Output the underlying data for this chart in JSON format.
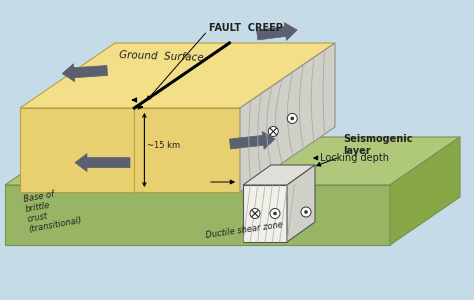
{
  "bg_color": "#c5dce8",
  "upper_block_top_color": "#f2df88",
  "upper_block_front_color": "#e8d070",
  "upper_block_edge": "#b8a040",
  "lower_block_top_color": "#b0c87a",
  "lower_block_front_color": "#98b565",
  "lower_block_edge": "#789050",
  "fault_face_color": "#d8d8d0",
  "seismo_line_color": "#b0b0a8",
  "ductile_box_front": "#f0f0e8",
  "ductile_box_top": "#e0e0d8",
  "ductile_box_right": "#d0d0c8",
  "labels": {
    "ground_surface": "Ground  Surface",
    "fault_creep": "FAULT  CREEP",
    "seismogenic": "Seismogenic\nlayer",
    "locking_depth": "Locking depth",
    "depth_15km": "~15 km",
    "base_crust": "Base of\nbrittle\ncrust\n(transitional)",
    "ductile_zone": "Ductile shear zone"
  },
  "arrow_color": "#5a6070",
  "text_color": "#222222",
  "label_fontsize": 7.0,
  "small_fontsize": 6.0
}
